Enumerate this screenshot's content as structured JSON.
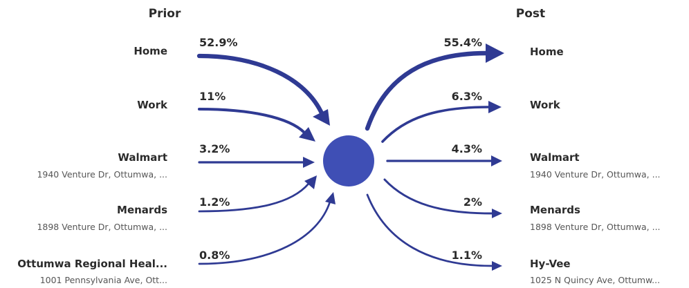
{
  "headers": {
    "prior": "Prior",
    "post": "Post"
  },
  "colors": {
    "flow": "#2f3a93",
    "hub": "#3f4fb5"
  },
  "prior": [
    {
      "name": "Home",
      "address": "",
      "percent": "52.9%",
      "value": 52.9
    },
    {
      "name": "Work",
      "address": "",
      "percent": "11%",
      "value": 11
    },
    {
      "name": "Walmart",
      "address": "1940 Venture Dr, Ottumwa, ...",
      "percent": "3.2%",
      "value": 3.2
    },
    {
      "name": "Menards",
      "address": "1898 Venture Dr, Ottumwa, ...",
      "percent": "1.2%",
      "value": 1.2
    },
    {
      "name": "Ottumwa Regional Heal...",
      "address": "1001 Pennsylvania Ave, Ott...",
      "percent": "0.8%",
      "value": 0.8
    }
  ],
  "post": [
    {
      "name": "Home",
      "address": "",
      "percent": "55.4%",
      "value": 55.4
    },
    {
      "name": "Work",
      "address": "",
      "percent": "6.3%",
      "value": 6.3
    },
    {
      "name": "Walmart",
      "address": "1940 Venture Dr, Ottumwa, ...",
      "percent": "4.3%",
      "value": 4.3
    },
    {
      "name": "Menards",
      "address": "1898 Venture Dr, Ottumwa, ...",
      "percent": "2%",
      "value": 2
    },
    {
      "name": "Hy-Vee",
      "address": "1025 N Quincy Ave, Ottumw...",
      "percent": "1.1%",
      "value": 1.1
    }
  ]
}
